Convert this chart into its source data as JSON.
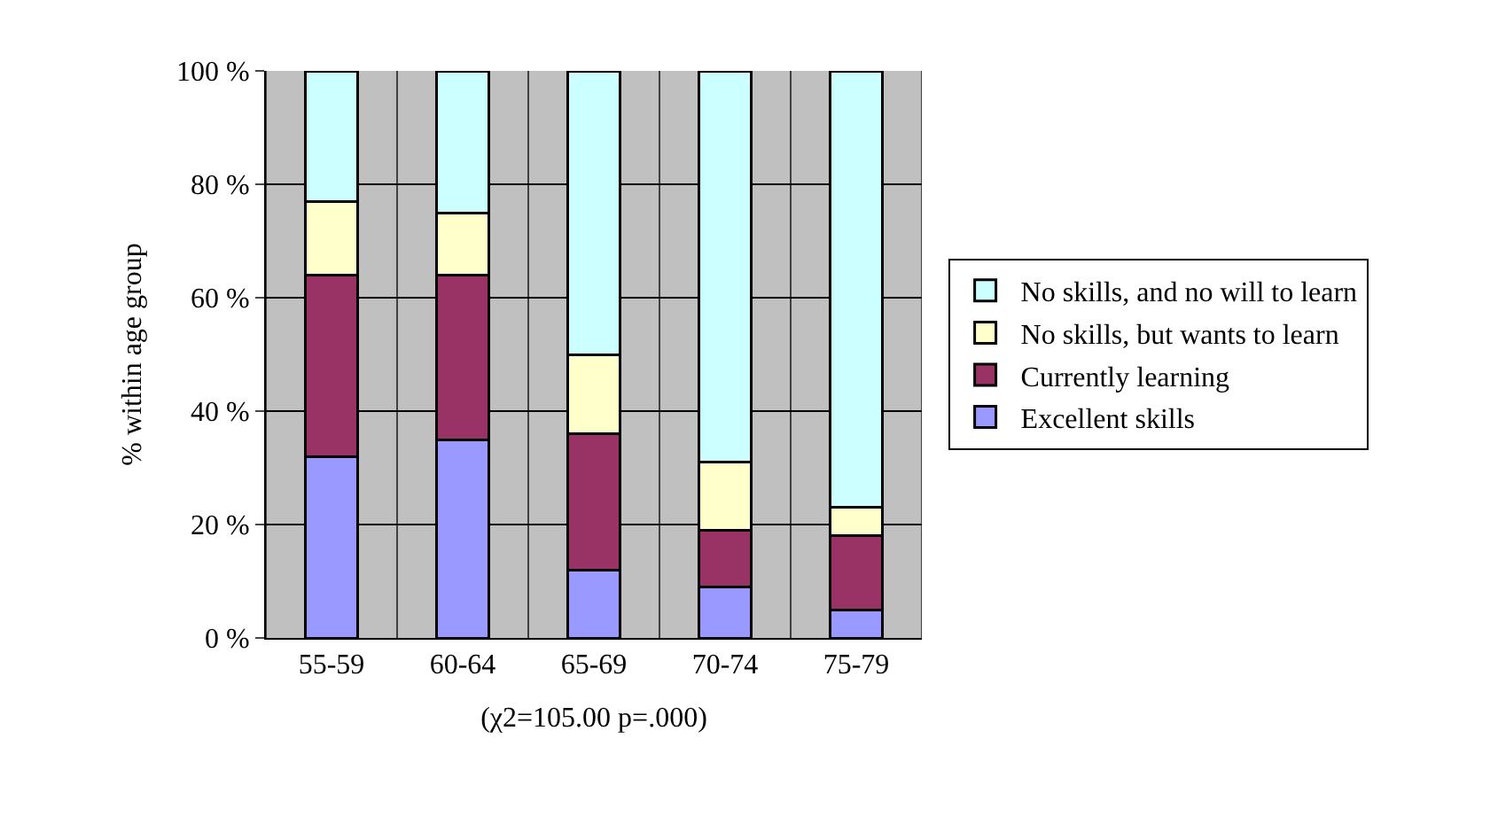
{
  "chart_data": {
    "type": "bar",
    "stacked": true,
    "xlabel": "(χ2=105.00 p=.000)",
    "ylabel": "% within age group",
    "categories": [
      "55-59",
      "60-64",
      "65-69",
      "70-74",
      "75-79"
    ],
    "series": [
      {
        "name": "Excellent skills",
        "color": "#9999ff",
        "values": [
          32,
          35,
          12,
          9,
          5
        ]
      },
      {
        "name": "Currently learning",
        "color": "#993366",
        "values": [
          32,
          29,
          24,
          10,
          13
        ]
      },
      {
        "name": "No skills, but wants to learn",
        "color": "#ffffcc",
        "values": [
          13,
          11,
          14,
          12,
          5
        ]
      },
      {
        "name": "No skills, and no will to learn",
        "color": "#ccffff",
        "values": [
          23,
          25,
          50,
          69,
          77
        ]
      }
    ],
    "ylim": [
      0,
      100
    ],
    "yticks": [
      {
        "value": 0,
        "label": "0 %"
      },
      {
        "value": 20,
        "label": "20 %"
      },
      {
        "value": 40,
        "label": "40 %"
      },
      {
        "value": 60,
        "label": "60 %"
      },
      {
        "value": 80,
        "label": "80 %"
      },
      {
        "value": 100,
        "label": "100 %"
      }
    ],
    "grid": true,
    "legend": "right"
  }
}
